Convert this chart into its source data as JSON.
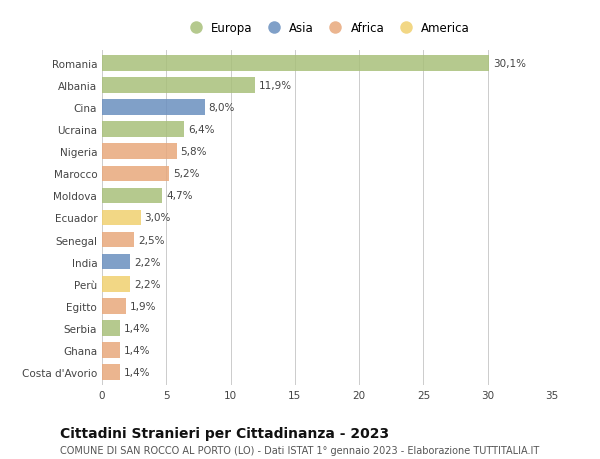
{
  "countries": [
    "Romania",
    "Albania",
    "Cina",
    "Ucraina",
    "Nigeria",
    "Marocco",
    "Moldova",
    "Ecuador",
    "Senegal",
    "India",
    "Perù",
    "Egitto",
    "Serbia",
    "Ghana",
    "Costa d'Avorio"
  ],
  "values": [
    30.1,
    11.9,
    8.0,
    6.4,
    5.8,
    5.2,
    4.7,
    3.0,
    2.5,
    2.2,
    2.2,
    1.9,
    1.4,
    1.4,
    1.4
  ],
  "labels": [
    "30,1%",
    "11,9%",
    "8,0%",
    "6,4%",
    "5,8%",
    "5,2%",
    "4,7%",
    "3,0%",
    "2,5%",
    "2,2%",
    "2,2%",
    "1,9%",
    "1,4%",
    "1,4%",
    "1,4%"
  ],
  "continents": [
    "Europa",
    "Europa",
    "Asia",
    "Europa",
    "Africa",
    "Africa",
    "Europa",
    "America",
    "Africa",
    "Asia",
    "America",
    "Africa",
    "Europa",
    "Africa",
    "Africa"
  ],
  "continent_colors": {
    "Europa": "#a8c07a",
    "Asia": "#6a8fbf",
    "Africa": "#e8a87c",
    "America": "#f0d070"
  },
  "legend_order": [
    "Europa",
    "Asia",
    "Africa",
    "America"
  ],
  "xlim": [
    0,
    35
  ],
  "xticks": [
    0,
    5,
    10,
    15,
    20,
    25,
    30,
    35
  ],
  "title": "Cittadini Stranieri per Cittadinanza - 2023",
  "subtitle": "COMUNE DI SAN ROCCO AL PORTO (LO) - Dati ISTAT 1° gennaio 2023 - Elaborazione TUTTITALIA.IT",
  "bg_color": "#ffffff",
  "bar_height": 0.7,
  "grid_color": "#cccccc",
  "label_fontsize": 7.5,
  "tick_fontsize": 7.5,
  "title_fontsize": 10,
  "subtitle_fontsize": 7.0
}
